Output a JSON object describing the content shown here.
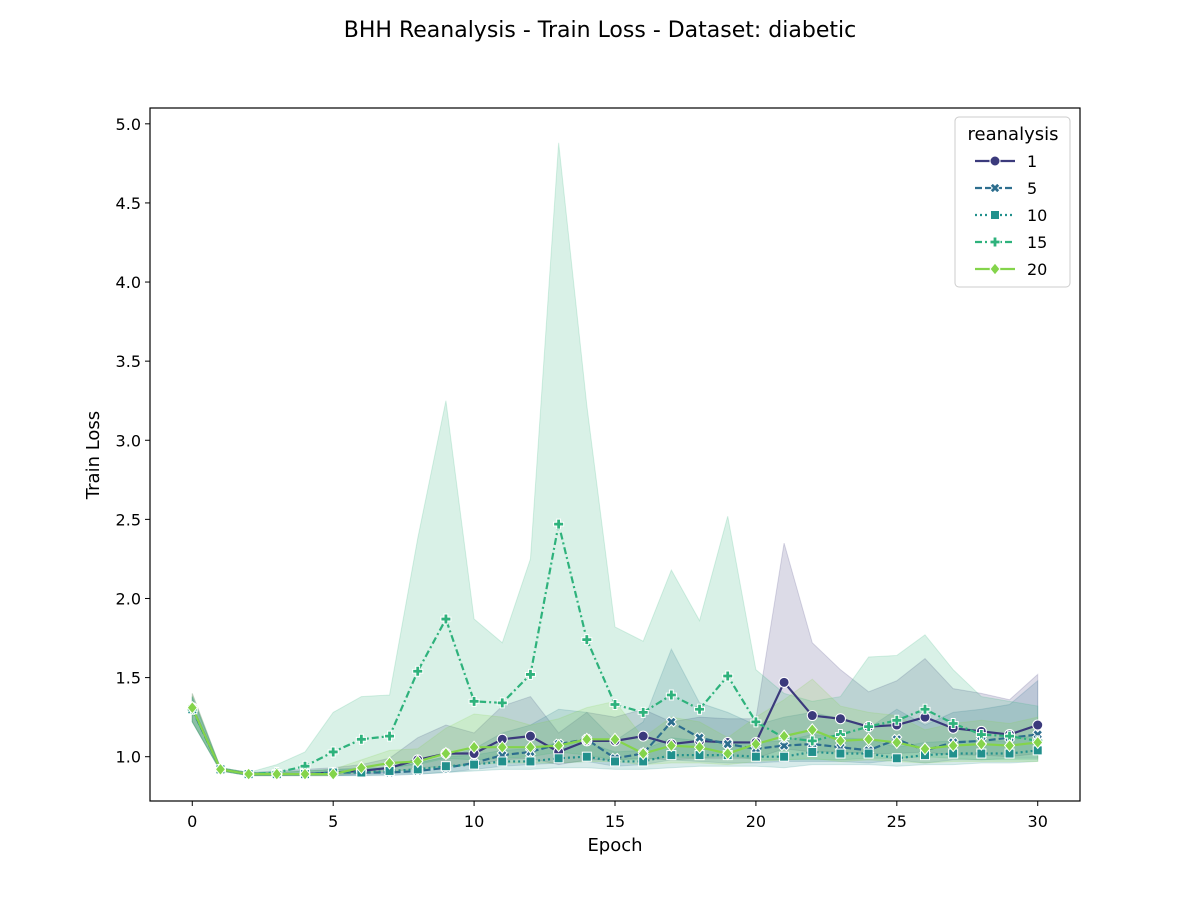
{
  "chart_data": {
    "type": "line",
    "title": "BHH Reanalysis - Train Loss - Dataset: diabetic",
    "xlabel": "Epoch",
    "ylabel": "Train Loss",
    "xlim": [
      -1.5,
      31.5
    ],
    "ylim": [
      0.72,
      5.1
    ],
    "xticks": [
      0,
      5,
      10,
      15,
      20,
      25,
      30
    ],
    "xtick_labels": [
      "0",
      "5",
      "10",
      "15",
      "20",
      "25",
      "30"
    ],
    "yticks": [
      1.0,
      1.5,
      2.0,
      2.5,
      3.0,
      3.5,
      4.0,
      4.5,
      5.0
    ],
    "ytick_labels": [
      "1.0",
      "1.5",
      "2.0",
      "2.5",
      "3.0",
      "3.5",
      "4.0",
      "4.5",
      "5.0"
    ],
    "grid": false,
    "legend_title": "reanalysis",
    "legend_position": "top-right",
    "x": [
      0,
      1,
      2,
      3,
      4,
      5,
      6,
      7,
      8,
      9,
      10,
      11,
      12,
      13,
      14,
      15,
      16,
      17,
      18,
      19,
      20,
      21,
      22,
      23,
      24,
      25,
      26,
      27,
      28,
      29,
      30
    ],
    "series": [
      {
        "name": "1",
        "color": "#3b3a7c",
        "dash": "solid",
        "marker": "circle",
        "values": [
          1.31,
          0.92,
          0.89,
          0.89,
          0.89,
          0.9,
          0.91,
          0.93,
          0.98,
          1.02,
          1.02,
          1.11,
          1.13,
          1.03,
          1.1,
          1.1,
          1.13,
          1.08,
          1.1,
          1.09,
          1.09,
          1.47,
          1.26,
          1.24,
          1.19,
          1.2,
          1.25,
          1.18,
          1.16,
          1.14,
          1.2
        ],
        "ci_lower": [
          1.22,
          0.91,
          0.88,
          0.88,
          0.88,
          0.88,
          0.89,
          0.9,
          0.93,
          0.94,
          0.95,
          0.98,
          0.99,
          0.95,
          0.98,
          0.98,
          0.99,
          0.98,
          0.99,
          0.99,
          0.99,
          1.05,
          1.03,
          1.03,
          1.02,
          1.02,
          1.03,
          1.01,
          1.01,
          1.0,
          1.02
        ],
        "ci_upper": [
          1.4,
          0.93,
          0.9,
          0.91,
          0.92,
          0.93,
          0.95,
          0.99,
          1.12,
          1.2,
          1.15,
          1.32,
          1.38,
          1.15,
          1.28,
          1.25,
          1.3,
          1.22,
          1.25,
          1.24,
          1.24,
          2.35,
          1.72,
          1.55,
          1.41,
          1.48,
          1.62,
          1.43,
          1.4,
          1.36,
          1.52
        ]
      },
      {
        "name": "5",
        "color": "#2d6e8e",
        "dash": "dashed",
        "marker": "x",
        "values": [
          1.3,
          0.92,
          0.89,
          0.89,
          0.89,
          0.9,
          0.9,
          0.9,
          0.91,
          0.93,
          0.96,
          1.01,
          1.03,
          1.08,
          1.11,
          0.99,
          1.02,
          1.22,
          1.12,
          1.08,
          1.05,
          1.07,
          1.08,
          1.06,
          1.04,
          1.11,
          1.04,
          1.09,
          1.1,
          1.12,
          1.14
        ],
        "ci_lower": [
          1.22,
          0.91,
          0.88,
          0.88,
          0.88,
          0.88,
          0.88,
          0.88,
          0.89,
          0.9,
          0.92,
          0.94,
          0.95,
          0.96,
          0.97,
          0.94,
          0.95,
          0.98,
          0.97,
          0.96,
          0.96,
          0.97,
          0.97,
          0.97,
          0.96,
          0.98,
          0.96,
          0.98,
          0.98,
          0.99,
          0.99
        ],
        "ci_upper": [
          1.38,
          0.93,
          0.9,
          0.9,
          0.91,
          0.92,
          0.93,
          0.93,
          0.96,
          1.0,
          1.05,
          1.15,
          1.2,
          1.3,
          1.28,
          1.1,
          1.22,
          1.68,
          1.34,
          1.28,
          1.2,
          1.25,
          1.28,
          1.24,
          1.18,
          1.3,
          1.2,
          1.28,
          1.3,
          1.33,
          1.48
        ]
      },
      {
        "name": "10",
        "color": "#21908c",
        "dash": "dotted",
        "marker": "square",
        "values": [
          1.3,
          0.92,
          0.89,
          0.89,
          0.89,
          0.9,
          0.9,
          0.91,
          0.92,
          0.94,
          0.95,
          0.97,
          0.97,
          0.99,
          1.0,
          0.97,
          0.97,
          1.01,
          1.01,
          1.01,
          1.0,
          1.0,
          1.03,
          1.02,
          1.02,
          0.99,
          1.01,
          1.02,
          1.02,
          1.02,
          1.04
        ],
        "ci_lower": [
          1.22,
          0.91,
          0.88,
          0.88,
          0.88,
          0.88,
          0.88,
          0.89,
          0.89,
          0.9,
          0.91,
          0.92,
          0.92,
          0.93,
          0.93,
          0.92,
          0.92,
          0.93,
          0.94,
          0.94,
          0.94,
          0.93,
          0.95,
          0.95,
          0.95,
          0.94,
          0.95,
          0.95,
          0.96,
          0.96,
          0.97
        ],
        "ci_upper": [
          1.38,
          0.93,
          0.9,
          0.9,
          0.91,
          0.92,
          0.92,
          0.93,
          0.96,
          1.0,
          1.01,
          1.04,
          1.05,
          1.09,
          1.09,
          1.03,
          1.04,
          1.12,
          1.1,
          1.1,
          1.09,
          1.1,
          1.14,
          1.12,
          1.11,
          1.06,
          1.09,
          1.1,
          1.1,
          1.1,
          1.14
        ]
      },
      {
        "name": "15",
        "color": "#2eb27c",
        "dash": "dashdot",
        "marker": "plus",
        "values": [
          1.3,
          0.92,
          0.89,
          0.9,
          0.94,
          1.03,
          1.11,
          1.13,
          1.54,
          1.87,
          1.35,
          1.34,
          1.52,
          2.47,
          1.74,
          1.33,
          1.28,
          1.39,
          1.3,
          1.51,
          1.22,
          1.12,
          1.1,
          1.14,
          1.19,
          1.23,
          1.3,
          1.21,
          1.14,
          1.13,
          1.1
        ],
        "ci_lower": [
          1.22,
          0.91,
          0.88,
          0.88,
          0.89,
          0.9,
          0.92,
          0.93,
          0.95,
          0.99,
          0.98,
          0.99,
          1.0,
          1.03,
          1.01,
          0.98,
          0.98,
          1.0,
          0.99,
          1.01,
          0.98,
          0.98,
          0.98,
          0.98,
          0.99,
          0.99,
          1.0,
          0.99,
          0.98,
          0.98,
          0.98
        ],
        "ci_upper": [
          1.38,
          0.93,
          0.9,
          0.95,
          1.03,
          1.28,
          1.38,
          1.39,
          2.38,
          3.25,
          1.87,
          1.72,
          2.25,
          4.88,
          3.22,
          1.82,
          1.73,
          2.18,
          1.86,
          2.52,
          1.55,
          1.4,
          1.35,
          1.38,
          1.63,
          1.64,
          1.77,
          1.55,
          1.38,
          1.35,
          1.32
        ]
      },
      {
        "name": "20",
        "color": "#84d44b",
        "dash": "solid",
        "marker": "diamond",
        "values": [
          1.31,
          0.92,
          0.89,
          0.89,
          0.89,
          0.89,
          0.93,
          0.96,
          0.97,
          1.02,
          1.06,
          1.06,
          1.06,
          1.07,
          1.11,
          1.11,
          1.02,
          1.07,
          1.06,
          1.02,
          1.08,
          1.13,
          1.17,
          1.1,
          1.11,
          1.09,
          1.05,
          1.07,
          1.08,
          1.07,
          1.09
        ],
        "ci_lower": [
          1.22,
          0.91,
          0.88,
          0.88,
          0.88,
          0.88,
          0.9,
          0.91,
          0.92,
          0.94,
          0.95,
          0.96,
          0.96,
          0.96,
          0.97,
          0.97,
          0.95,
          0.96,
          0.96,
          0.95,
          0.97,
          0.98,
          0.99,
          0.97,
          0.98,
          0.97,
          0.96,
          0.97,
          0.97,
          0.97,
          0.97
        ],
        "ci_upper": [
          1.4,
          0.93,
          0.9,
          0.9,
          0.91,
          0.92,
          0.98,
          1.04,
          1.05,
          1.18,
          1.27,
          1.25,
          1.2,
          1.24,
          1.31,
          1.35,
          1.12,
          1.25,
          1.22,
          1.12,
          1.25,
          1.36,
          1.49,
          1.32,
          1.28,
          1.26,
          1.17,
          1.21,
          1.23,
          1.21,
          1.25
        ]
      }
    ]
  }
}
